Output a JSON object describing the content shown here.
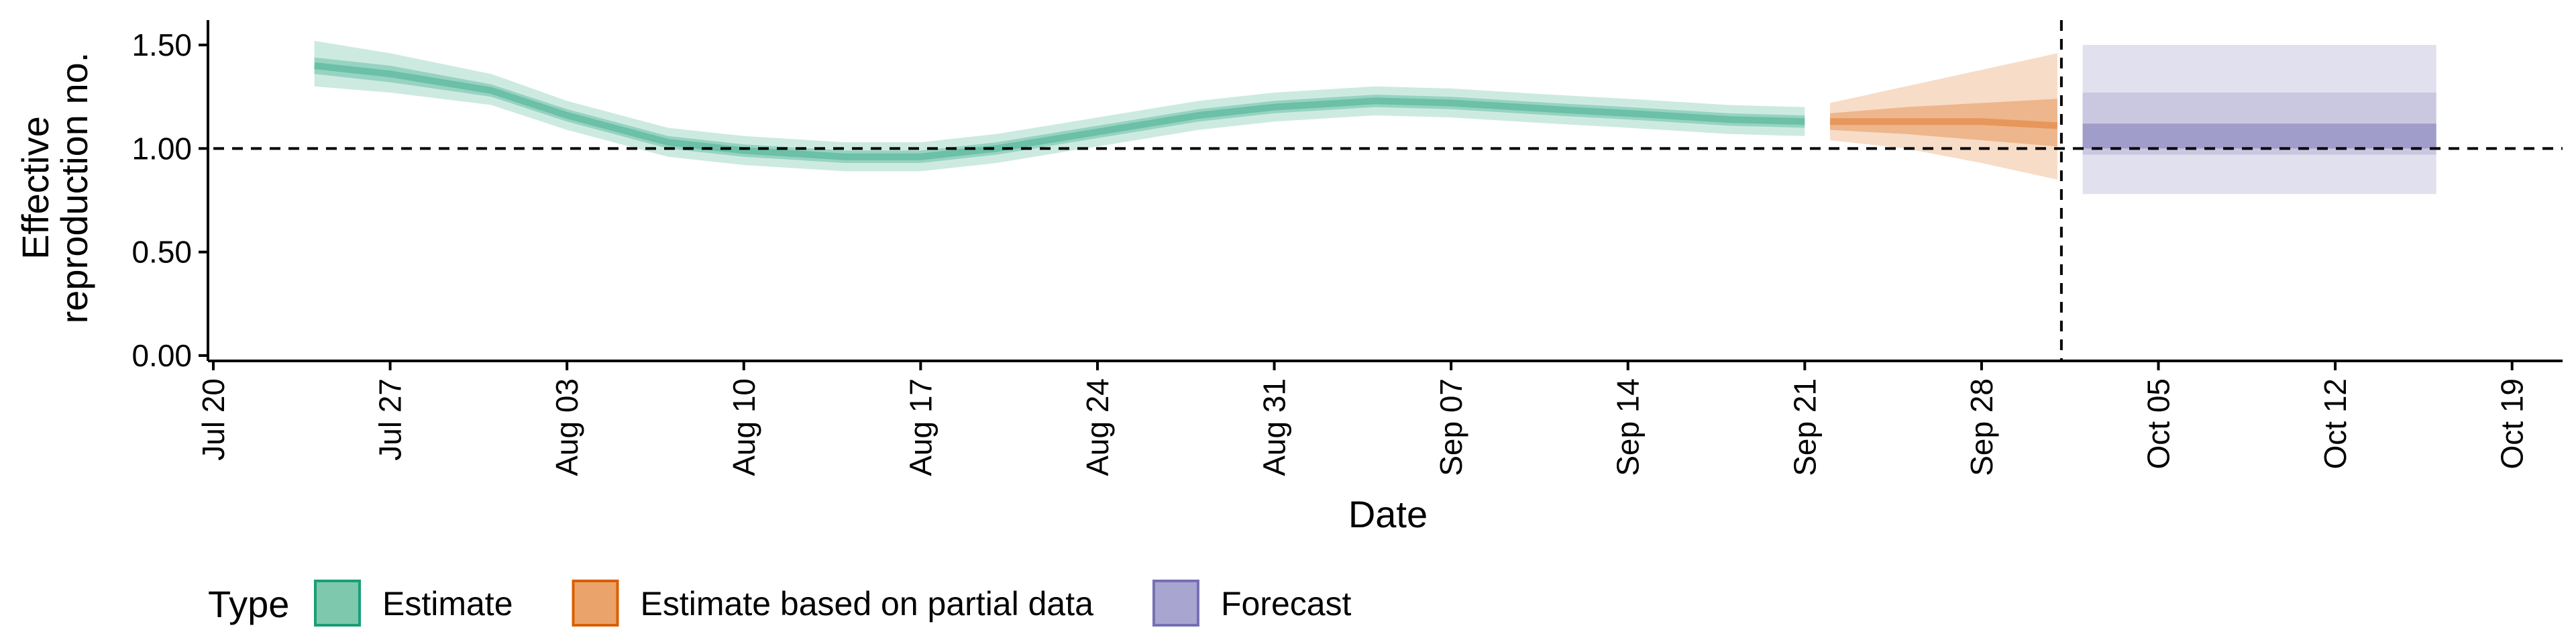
{
  "chart_data": {
    "type": "area",
    "title": "",
    "xlabel": "Date",
    "ylabel_lines": [
      "Effective",
      "reproduction no."
    ],
    "x_ticks": [
      "Jul 20",
      "Jul 27",
      "Aug 03",
      "Aug 10",
      "Aug 17",
      "Aug 24",
      "Aug 31",
      "Sep 07",
      "Sep 14",
      "Sep 21",
      "Sep 28",
      "Oct 05",
      "Oct 12",
      "Oct 19"
    ],
    "y_ticks": [
      "0.00",
      "0.50",
      "1.00",
      "1.50"
    ],
    "xlim": [
      "2020-07-20",
      "2020-10-21"
    ],
    "ylim": [
      0,
      1.62
    ],
    "reference_line_y": 1.0,
    "reference_line_date": "2020-10-01",
    "legend": {
      "title": "Type",
      "position": "bottom",
      "entries": [
        {
          "label": "Estimate",
          "fill": "#7ec8ad",
          "stroke": "#1b9e77"
        },
        {
          "label": "Estimate based on partial data",
          "fill": "#eba36c",
          "stroke": "#d95f02"
        },
        {
          "label": "Forecast",
          "fill": "#a8a6d0",
          "stroke": "#7570b3"
        }
      ]
    },
    "series": [
      {
        "type_label": "Estimate",
        "color": "#1b9e77",
        "points": [
          {
            "date": "2020-07-24",
            "median": 1.4,
            "l50": 1.36,
            "u50": 1.44,
            "l90": 1.3,
            "u90": 1.52
          },
          {
            "date": "2020-07-27",
            "median": 1.36,
            "l50": 1.32,
            "u50": 1.4,
            "l90": 1.27,
            "u90": 1.46
          },
          {
            "date": "2020-07-31",
            "median": 1.28,
            "l50": 1.25,
            "u50": 1.31,
            "l90": 1.21,
            "u90": 1.36
          },
          {
            "date": "2020-08-03",
            "median": 1.16,
            "l50": 1.13,
            "u50": 1.19,
            "l90": 1.09,
            "u90": 1.23
          },
          {
            "date": "2020-08-07",
            "median": 1.03,
            "l50": 1.0,
            "u50": 1.06,
            "l90": 0.96,
            "u90": 1.1
          },
          {
            "date": "2020-08-10",
            "median": 0.99,
            "l50": 0.96,
            "u50": 1.02,
            "l90": 0.92,
            "u90": 1.06
          },
          {
            "date": "2020-08-14",
            "median": 0.96,
            "l50": 0.93,
            "u50": 0.99,
            "l90": 0.89,
            "u90": 1.03
          },
          {
            "date": "2020-08-17",
            "median": 0.96,
            "l50": 0.93,
            "u50": 0.99,
            "l90": 0.89,
            "u90": 1.03
          },
          {
            "date": "2020-08-20",
            "median": 1.0,
            "l50": 0.97,
            "u50": 1.03,
            "l90": 0.93,
            "u90": 1.07
          },
          {
            "date": "2020-08-24",
            "median": 1.08,
            "l50": 1.05,
            "u50": 1.11,
            "l90": 1.01,
            "u90": 1.15
          },
          {
            "date": "2020-08-28",
            "median": 1.16,
            "l50": 1.13,
            "u50": 1.19,
            "l90": 1.09,
            "u90": 1.23
          },
          {
            "date": "2020-08-31",
            "median": 1.2,
            "l50": 1.17,
            "u50": 1.23,
            "l90": 1.13,
            "u90": 1.27
          },
          {
            "date": "2020-09-04",
            "median": 1.23,
            "l50": 1.2,
            "u50": 1.26,
            "l90": 1.16,
            "u90": 1.3
          },
          {
            "date": "2020-09-07",
            "median": 1.22,
            "l50": 1.19,
            "u50": 1.25,
            "l90": 1.15,
            "u90": 1.29
          },
          {
            "date": "2020-09-11",
            "median": 1.19,
            "l50": 1.16,
            "u50": 1.22,
            "l90": 1.12,
            "u90": 1.26
          },
          {
            "date": "2020-09-14",
            "median": 1.17,
            "l50": 1.14,
            "u50": 1.2,
            "l90": 1.1,
            "u90": 1.24
          },
          {
            "date": "2020-09-18",
            "median": 1.14,
            "l50": 1.11,
            "u50": 1.17,
            "l90": 1.07,
            "u90": 1.21
          },
          {
            "date": "2020-09-21",
            "median": 1.13,
            "l50": 1.1,
            "u50": 1.16,
            "l90": 1.06,
            "u90": 1.2
          }
        ]
      },
      {
        "type_label": "Estimate based on partial data",
        "color": "#d95f02",
        "points": [
          {
            "date": "2020-09-22",
            "median": 1.13,
            "l50": 1.09,
            "u50": 1.17,
            "l90": 1.04,
            "u90": 1.22
          },
          {
            "date": "2020-09-25",
            "median": 1.13,
            "l50": 1.07,
            "u50": 1.2,
            "l90": 1.0,
            "u90": 1.3
          },
          {
            "date": "2020-09-28",
            "median": 1.13,
            "l50": 1.04,
            "u50": 1.22,
            "l90": 0.93,
            "u90": 1.38
          },
          {
            "date": "2020-10-01",
            "median": 1.11,
            "l50": 1.01,
            "u50": 1.24,
            "l90": 0.85,
            "u90": 1.46
          }
        ]
      },
      {
        "type_label": "Forecast",
        "color": "#7570b3",
        "points": [
          {
            "date": "2020-10-02",
            "median": 1.06,
            "l50": 1.0,
            "u50": 1.12,
            "l80": 0.97,
            "u80": 1.27,
            "l90": 0.78,
            "u90": 1.5
          },
          {
            "date": "2020-10-16",
            "median": 1.06,
            "l50": 1.0,
            "u50": 1.12,
            "l80": 0.97,
            "u80": 1.27,
            "l90": 0.78,
            "u90": 1.5
          }
        ]
      }
    ]
  }
}
